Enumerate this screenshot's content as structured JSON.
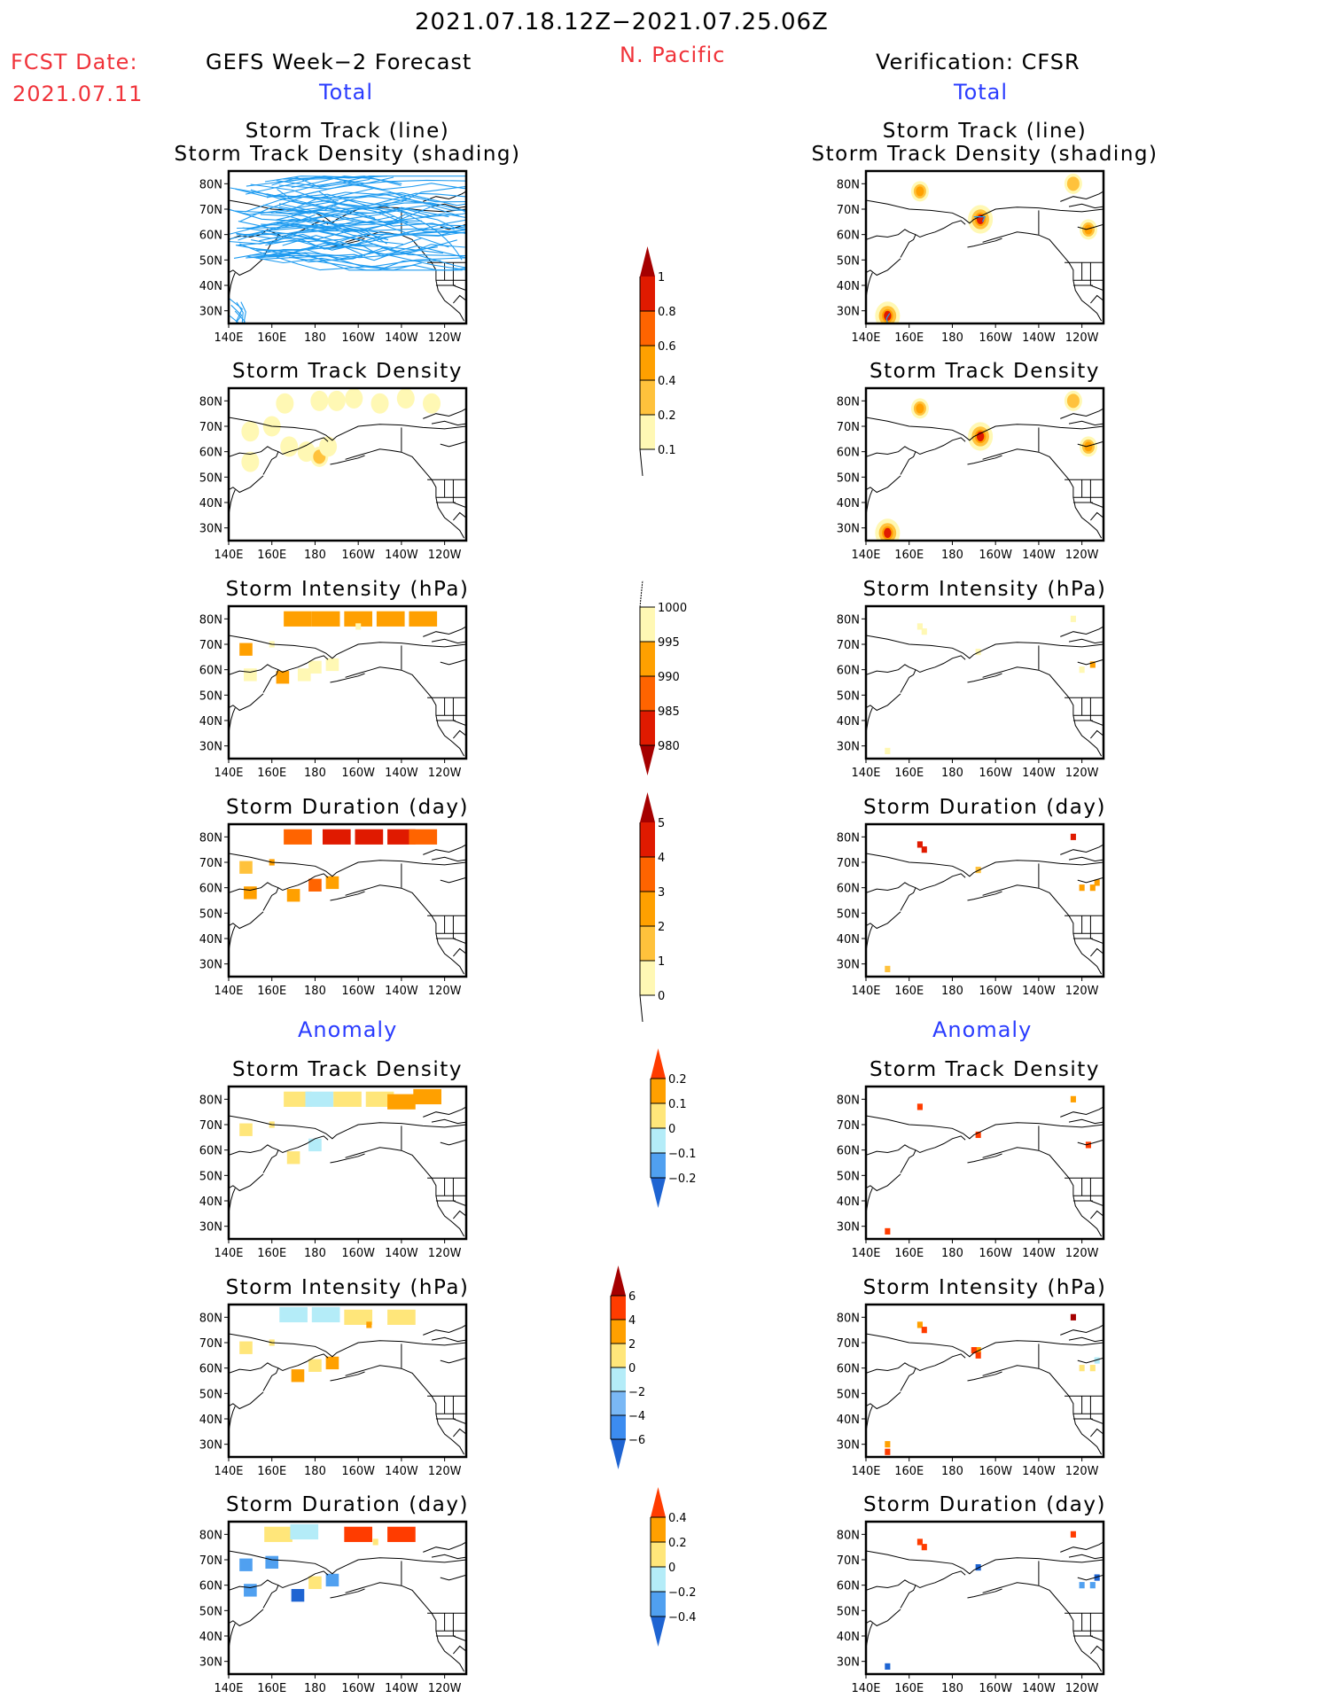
{
  "header": {
    "period": "2021.07.18.12Z−2021.07.25.06Z",
    "fcst_label": "FCST Date:",
    "fcst_date": "2021.07.11",
    "region": "N. Pacific",
    "left_title": "GEFS Week−2 Forecast",
    "right_title": "Verification: CFSR",
    "total_label": "Total",
    "anomaly_label": "Anomaly"
  },
  "axes": {
    "lon_ticks": [
      "140E",
      "160E",
      "180",
      "160W",
      "140W",
      "120W"
    ],
    "lon_values": [
      140,
      160,
      180,
      200,
      220,
      240
    ],
    "lat_ticks": [
      "80N",
      "70N",
      "60N",
      "50N",
      "40N",
      "30N"
    ],
    "lat_values": [
      80,
      70,
      60,
      50,
      40,
      30
    ],
    "lon_range": [
      140,
      250
    ],
    "lat_range": [
      25,
      85
    ]
  },
  "colors": {
    "track_line": "#1e9bf0",
    "coast": "#000000"
  },
  "colorbars": [
    {
      "id": "density",
      "labels": [
        "1",
        "0.8",
        "0.6",
        "0.4",
        "0.2",
        "0.1"
      ],
      "colors": [
        "#a50000",
        "#e01a00",
        "#ff6400",
        "#ffa000",
        "#ffc23c",
        "#fff8b4"
      ],
      "extend": "max"
    },
    {
      "id": "intensity",
      "labels": [
        "1000",
        "995",
        "990",
        "985",
        "980"
      ],
      "colors": [
        "#fff8b4",
        "#ffa000",
        "#ff6400",
        "#e01a00",
        "#a50000"
      ],
      "extend": "min"
    },
    {
      "id": "duration",
      "labels": [
        "5",
        "4",
        "3",
        "2",
        "1",
        "0"
      ],
      "colors": [
        "#a50000",
        "#e01a00",
        "#ff6400",
        "#ffa000",
        "#ffc23c",
        "#fff8b4"
      ],
      "extend": "max"
    },
    {
      "id": "density_anom",
      "labels": [
        "0.2",
        "0.1",
        "0",
        "−0.1",
        "−0.2"
      ],
      "colors": [
        "#ff3c00",
        "#ffa000",
        "#ffe67a",
        "#b4ecf8",
        "#50a0f0",
        "#1e64d2"
      ],
      "extend": "both"
    },
    {
      "id": "intensity_anom",
      "labels": [
        "6",
        "4",
        "2",
        "0",
        "−2",
        "−4",
        "−6"
      ],
      "colors": [
        "#a50000",
        "#ff3c00",
        "#ffa000",
        "#ffe67a",
        "#b4ecf8",
        "#7ab8f5",
        "#3c8cf0",
        "#1e64d2"
      ],
      "extend": "both"
    },
    {
      "id": "duration_anom",
      "labels": [
        "0.4",
        "0.2",
        "0",
        "−0.2",
        "−0.4"
      ],
      "colors": [
        "#ff3c00",
        "#ffa000",
        "#ffe67a",
        "#b4ecf8",
        "#50a0f0",
        "#1e64d2"
      ],
      "extend": "both"
    }
  ],
  "chart_data": [
    {
      "type": "heatmap",
      "panel": "gefs_track",
      "title": "Storm Track (line)\nStorm Track Density (shading)",
      "title_lines": [
        "Storm Track (line)",
        "Storm Track Density (shading)"
      ],
      "xlabel": "Longitude",
      "ylabel": "Latitude",
      "note": "many ensemble storm tracks 50N-82N, dense band across Arctic"
    },
    {
      "type": "heatmap",
      "panel": "gefs_density",
      "title": "Storm Track Density",
      "cells": [
        [
          168,
          62,
          0.15
        ],
        [
          176,
          60,
          0.15
        ],
        [
          182,
          58,
          0.3
        ],
        [
          186,
          62,
          0.15
        ],
        [
          150,
          68,
          0.15
        ],
        [
          150,
          56,
          0.12
        ],
        [
          160,
          70,
          0.12
        ],
        [
          166,
          79,
          0.15
        ],
        [
          182,
          80,
          0.15
        ],
        [
          190,
          80,
          0.15
        ],
        [
          198,
          81,
          0.12
        ],
        [
          210,
          79,
          0.15
        ],
        [
          222,
          81,
          0.12
        ],
        [
          234,
          79,
          0.12
        ]
      ]
    },
    {
      "type": "heatmap",
      "panel": "gefs_intensity",
      "title": "Storm Intensity (hPa)",
      "cells": [
        [
          172,
          80,
          993
        ],
        [
          185,
          80,
          993
        ],
        [
          200,
          80,
          993
        ],
        [
          215,
          80,
          993
        ],
        [
          230,
          80,
          993
        ],
        [
          148,
          68,
          993
        ],
        [
          165,
          57,
          993
        ],
        [
          175,
          58,
          998
        ],
        [
          180,
          61,
          998
        ],
        [
          160,
          70,
          998
        ],
        [
          150,
          58,
          998
        ],
        [
          188,
          62,
          998
        ],
        [
          200,
          77,
          998
        ]
      ]
    },
    {
      "type": "heatmap",
      "panel": "gefs_duration",
      "title": "Storm Duration (day)",
      "cells": [
        [
          172,
          80,
          3.5
        ],
        [
          190,
          80,
          4.5
        ],
        [
          205,
          80,
          4.5
        ],
        [
          220,
          80,
          4.5
        ],
        [
          230,
          80,
          3.5
        ],
        [
          148,
          68,
          1.5
        ],
        [
          170,
          57,
          2.5
        ],
        [
          180,
          61,
          3.5
        ],
        [
          160,
          70,
          2.5
        ],
        [
          150,
          58,
          2.5
        ],
        [
          188,
          62,
          2.5
        ]
      ]
    },
    {
      "type": "heatmap",
      "panel": "cfsr_track",
      "title": "Storm Track (line)\nStorm Track Density (shading)",
      "title_lines": [
        "Storm Track (line)",
        "Storm Track Density (shading)"
      ],
      "cells": [
        [
          150,
          28,
          1.0
        ],
        [
          165,
          77,
          0.45
        ],
        [
          193,
          66,
          0.7
        ],
        [
          236,
          80,
          0.3
        ],
        [
          243,
          62,
          0.45
        ]
      ]
    },
    {
      "type": "heatmap",
      "panel": "cfsr_density",
      "title": "Storm Track Density",
      "cells": [
        [
          150,
          28,
          1.0
        ],
        [
          165,
          77,
          0.45
        ],
        [
          193,
          66,
          0.7
        ],
        [
          236,
          80,
          0.3
        ],
        [
          243,
          62,
          0.45
        ]
      ]
    },
    {
      "type": "heatmap",
      "panel": "cfsr_intensity",
      "title": "Storm Intensity (hPa)",
      "cells": [
        [
          165,
          77,
          998
        ],
        [
          167,
          75,
          998
        ],
        [
          192,
          67,
          998
        ],
        [
          236,
          80,
          998
        ],
        [
          240,
          60,
          998
        ],
        [
          245,
          62,
          993
        ],
        [
          150,
          28,
          998
        ]
      ]
    },
    {
      "type": "heatmap",
      "panel": "cfsr_duration",
      "title": "Storm Duration (day)",
      "cells": [
        [
          165,
          77,
          4.5
        ],
        [
          167,
          75,
          4.5
        ],
        [
          236,
          80,
          4.5
        ],
        [
          192,
          67,
          1.5
        ],
        [
          240,
          60,
          2.5
        ],
        [
          245,
          60,
          2.5
        ],
        [
          247,
          62,
          2.5
        ],
        [
          150,
          28,
          1.5
        ]
      ]
    },
    {
      "type": "heatmap",
      "panel": "gefs_density_anom",
      "title": "Storm Track Density",
      "cells": [
        [
          172,
          80,
          0.05
        ],
        [
          182,
          80,
          -0.05
        ],
        [
          195,
          80,
          0.05
        ],
        [
          210,
          80,
          0.05
        ],
        [
          220,
          79,
          0.15
        ],
        [
          232,
          81,
          0.15
        ],
        [
          148,
          68,
          0.05
        ],
        [
          170,
          57,
          0.05
        ],
        [
          180,
          62,
          -0.05
        ],
        [
          160,
          70,
          0.05
        ]
      ]
    },
    {
      "type": "heatmap",
      "panel": "gefs_intensity_anom",
      "title": "Storm Intensity (hPa)",
      "cells": [
        [
          170,
          81,
          -1
        ],
        [
          185,
          81,
          -1
        ],
        [
          200,
          80,
          1
        ],
        [
          220,
          80,
          1
        ],
        [
          205,
          77,
          3
        ],
        [
          148,
          68,
          1
        ],
        [
          172,
          57,
          3
        ],
        [
          180,
          61,
          1
        ],
        [
          188,
          62,
          3
        ],
        [
          160,
          70,
          1
        ]
      ]
    },
    {
      "type": "heatmap",
      "panel": "gefs_duration_anom",
      "title": "Storm Duration (day)",
      "cells": [
        [
          163,
          80,
          0.1
        ],
        [
          175,
          81,
          -0.1
        ],
        [
          200,
          80,
          0.5
        ],
        [
          220,
          80,
          0.5
        ],
        [
          208,
          77,
          0.1
        ],
        [
          148,
          68,
          -0.3
        ],
        [
          172,
          56,
          -0.5
        ],
        [
          180,
          61,
          0.1
        ],
        [
          188,
          62,
          -0.3
        ],
        [
          160,
          69,
          -0.3
        ],
        [
          150,
          58,
          -0.3
        ]
      ]
    },
    {
      "type": "heatmap",
      "panel": "cfsr_density_anom",
      "title": "Storm Track Density",
      "cells": [
        [
          150,
          28,
          0.25
        ],
        [
          165,
          77,
          0.25
        ],
        [
          192,
          66,
          0.25
        ],
        [
          236,
          80,
          0.15
        ],
        [
          243,
          62,
          0.25
        ]
      ]
    },
    {
      "type": "heatmap",
      "panel": "cfsr_intensity_anom",
      "title": "Storm Intensity (hPa)",
      "cells": [
        [
          165,
          77,
          3
        ],
        [
          167,
          75,
          5
        ],
        [
          236,
          80,
          7
        ],
        [
          192,
          67,
          3
        ],
        [
          190,
          67,
          5
        ],
        [
          192,
          65,
          5
        ],
        [
          240,
          60,
          1
        ],
        [
          245,
          60,
          1
        ],
        [
          247,
          63,
          -1
        ],
        [
          150,
          30,
          3
        ],
        [
          150,
          27,
          5
        ]
      ]
    },
    {
      "type": "heatmap",
      "panel": "cfsr_duration_anom",
      "title": "Storm Duration (day)",
      "cells": [
        [
          165,
          77,
          0.5
        ],
        [
          167,
          75,
          0.5
        ],
        [
          236,
          80,
          0.5
        ],
        [
          192,
          67,
          -0.5
        ],
        [
          240,
          60,
          -0.3
        ],
        [
          245,
          60,
          -0.3
        ],
        [
          247,
          63,
          -0.5
        ],
        [
          150,
          28,
          -0.5
        ]
      ]
    }
  ]
}
